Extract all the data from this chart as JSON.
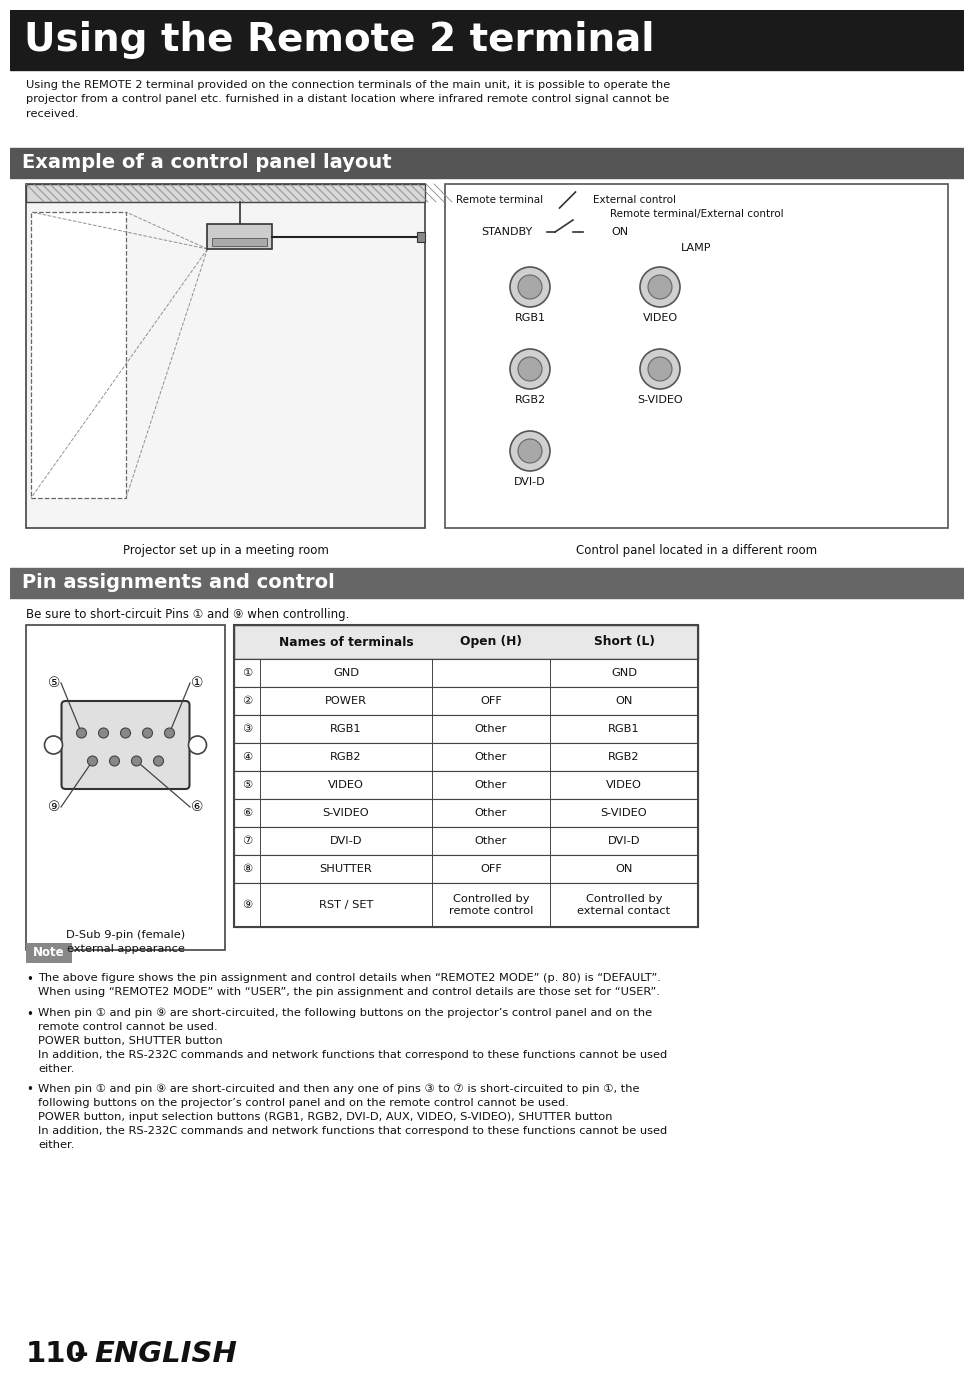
{
  "title": "Using the Remote 2 terminal",
  "title_bg": "#1a1a1a",
  "title_color": "#ffffff",
  "intro_text": "Using the REMOTE 2 terminal provided on the connection terminals of the main unit, it is possible to operate the\nprojector from a control panel etc. furnished in a distant location where infrared remote control signal cannot be\nreceived.",
  "section1_title": "Example of a control panel layout",
  "section1_bg": "#555555",
  "section1_color": "#ffffff",
  "caption_left": "Projector set up in a meeting room",
  "caption_right": "Control panel located in a different room",
  "section2_title": "Pin assignments and control",
  "section2_bg": "#666666",
  "section2_color": "#ffffff",
  "pin_instruction": "Be sure to short-circuit Pins ① and ⑨ when controlling.",
  "table_header": [
    "",
    "Names of terminals",
    "Open (H)",
    "Short (L)"
  ],
  "table_rows": [
    [
      "①",
      "GND",
      "",
      "GND"
    ],
    [
      "②",
      "POWER",
      "OFF",
      "ON"
    ],
    [
      "③",
      "RGB1",
      "Other",
      "RGB1"
    ],
    [
      "④",
      "RGB2",
      "Other",
      "RGB2"
    ],
    [
      "⑤",
      "VIDEO",
      "Other",
      "VIDEO"
    ],
    [
      "⑥",
      "S-VIDEO",
      "Other",
      "S-VIDEO"
    ],
    [
      "⑦",
      "DVI-D",
      "Other",
      "DVI-D"
    ],
    [
      "⑧",
      "SHUTTER",
      "OFF",
      "ON"
    ],
    [
      "⑨",
      "RST / SET",
      "Controlled by\nremote control",
      "Controlled by\nexternal contact"
    ]
  ],
  "note_title": "Note",
  "note_bg": "#888888",
  "note_color": "#ffffff",
  "note_bullets": [
    "The above figure shows the pin assignment and control details when “REMOTE2 MODE” (p. 80) is “DEFAULT”.\nWhen using “REMOTE2 MODE” with “USER”, the pin assignment and control details are those set for “USER”.",
    "When pin ① and pin ⑨ are short-circuited, the following buttons on the projector’s control panel and on the\nremote control cannot be used.\nPOWER button, SHUTTER button\nIn addition, the RS-232C commands and network functions that correspond to these functions cannot be used\neither.",
    "When pin ① and pin ⑨ are short-circuited and then any one of pins ③ to ⑦ is short-circuited to pin ①, the\nfollowing buttons on the projector’s control panel and on the remote control cannot be used.\nPOWER button, input selection buttons (RGB1, RGB2, DVI-D, AUX, VIDEO, S-VIDEO), SHUTTER button\nIn addition, the RS-232C commands and network functions that correspond to these functions cannot be used\neither."
  ],
  "footer_num": "110",
  "footer_dash": " – ",
  "footer_english": "ENGLISH",
  "page_bg": "#ffffff"
}
